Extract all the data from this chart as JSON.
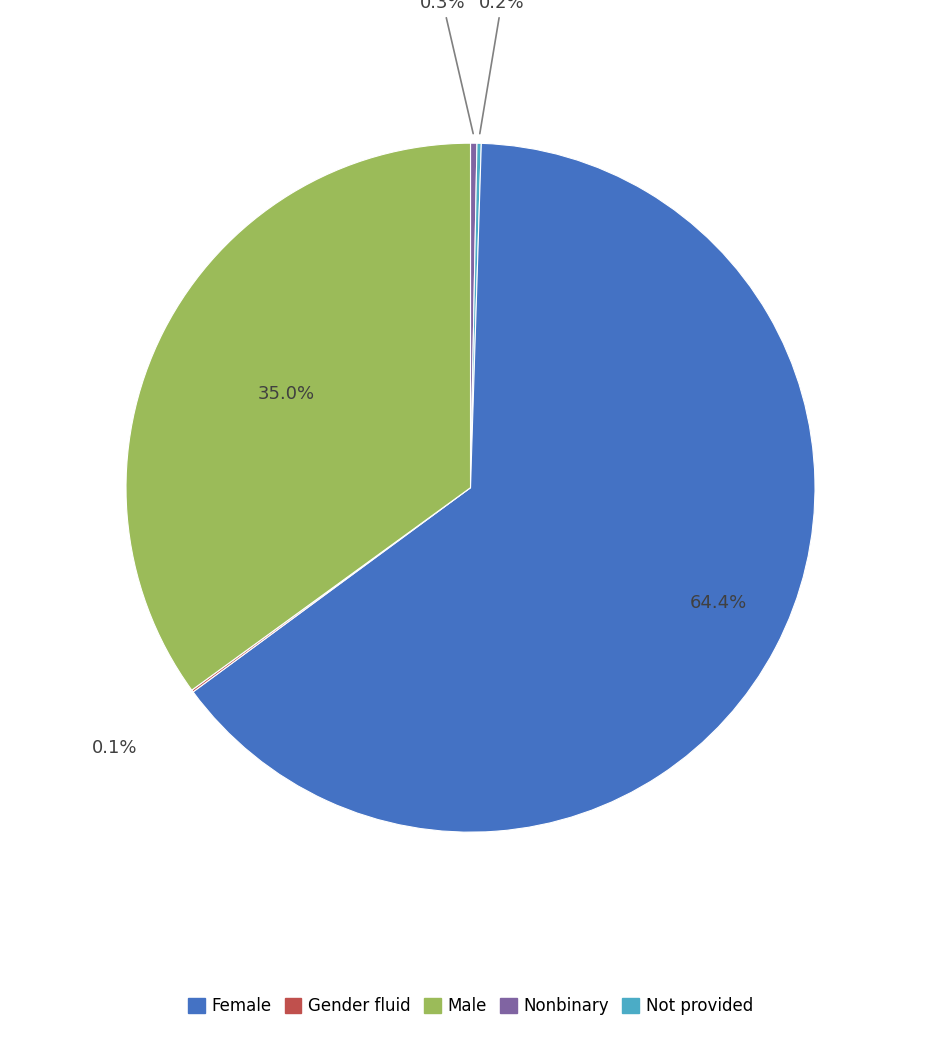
{
  "labels": [
    "Female",
    "Gender fluid",
    "Male",
    "Nonbinary",
    "Not provided"
  ],
  "values": [
    64.4,
    0.1,
    35.0,
    0.3,
    0.2
  ],
  "colors": [
    "#4472C4",
    "#C0504D",
    "#9BBB59",
    "#8064A2",
    "#4BACC6"
  ],
  "background_color": "#ffffff",
  "figsize": [
    9.41,
    10.37
  ],
  "dpi": 100,
  "wedge_order": [
    "Nonbinary",
    "Not provided",
    "Female",
    "Gender fluid",
    "Male"
  ],
  "text_color": "#404040",
  "label_fontsize": 13,
  "legend_fontsize": 12
}
